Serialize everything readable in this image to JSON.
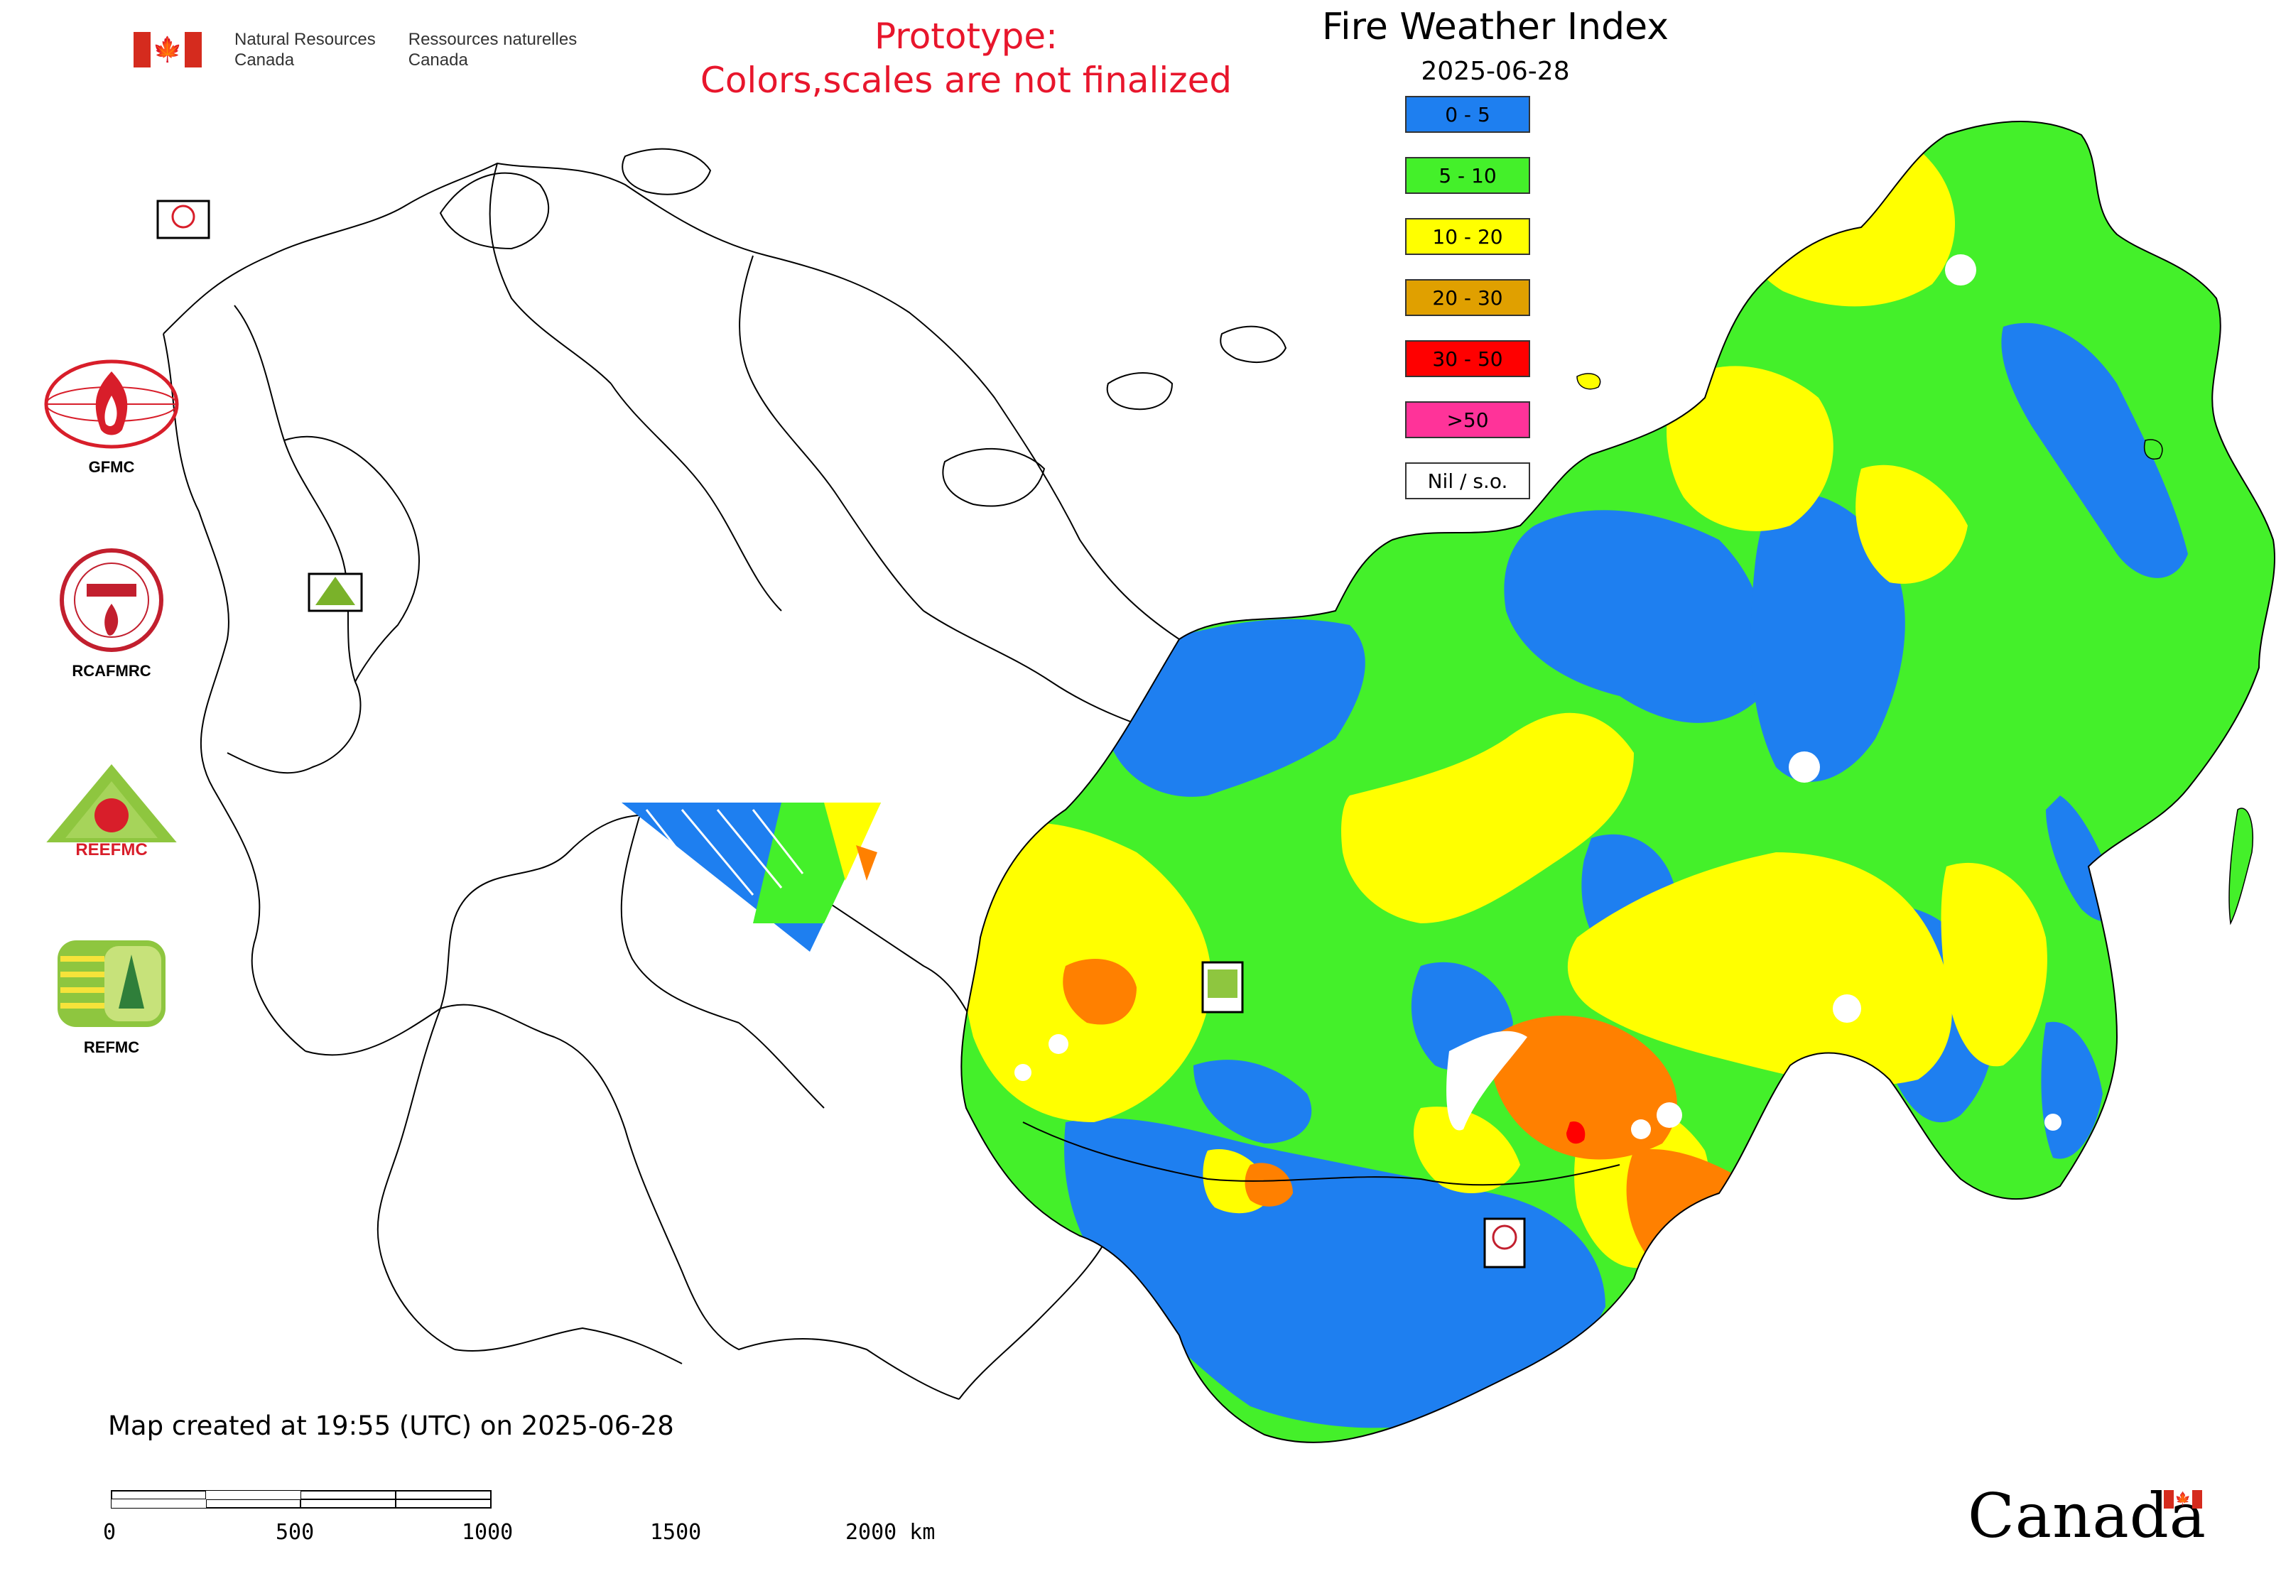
{
  "header": {
    "gov_en_line1": "Natural Resources",
    "gov_en_line2": "Canada",
    "gov_fr_line1": "Ressources naturelles",
    "gov_fr_line2": "Canada",
    "warning_line1": "Prototype:",
    "warning_line2": "Colors,scales are not finalized",
    "title": "Fire Weather Index",
    "date": "2025-06-28"
  },
  "legend": [
    {
      "label": "0 - 5",
      "color": "#1e7ff0"
    },
    {
      "label": "5 - 10",
      "color": "#44f02a"
    },
    {
      "label": "10 - 20",
      "color": "#ffff00"
    },
    {
      "label": "20 - 30",
      "color": "#e0a000"
    },
    {
      "label": "30 - 50",
      "color": "#ff0000"
    },
    {
      "label": ">50",
      "color": "#ff3399"
    },
    {
      "label": "Nil / s.o.",
      "color": "#ffffff"
    }
  ],
  "logos": [
    "GFMC",
    "RCAFMRC",
    "REEFMC",
    "REFMC"
  ],
  "footer": {
    "created": "Map created at 19:55 (UTC) on 2025-06-28",
    "scale_labels": [
      "0",
      "500",
      "1000",
      "1500",
      "2000 km"
    ],
    "wordmark": "Canada"
  },
  "map_colors": {
    "blue": "#1e7ff0",
    "green": "#44f02a",
    "yellow": "#ffff00",
    "orange": "#ff8000",
    "red": "#ff0000",
    "white": "#ffffff",
    "outline": "#000000"
  }
}
